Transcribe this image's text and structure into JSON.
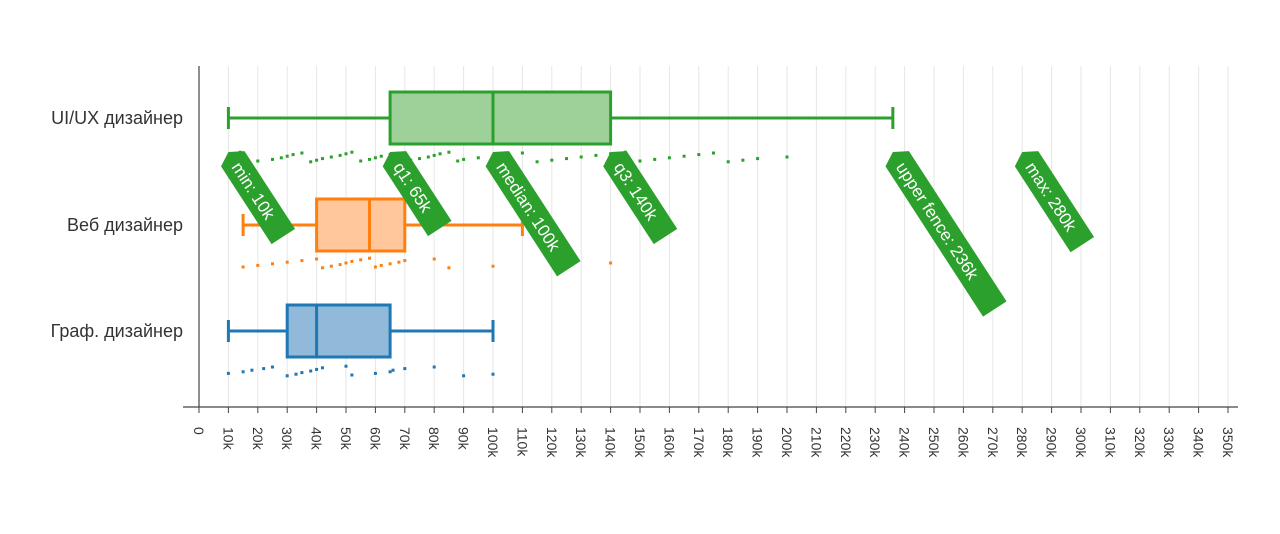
{
  "chart_data": {
    "type": "box",
    "orientation": "horizontal",
    "title": "",
    "xlabel": "",
    "ylabel": "",
    "xlim": [
      0,
      350000
    ],
    "x_ticks": [
      0,
      10000,
      20000,
      30000,
      40000,
      50000,
      60000,
      70000,
      80000,
      90000,
      100000,
      110000,
      120000,
      130000,
      140000,
      150000,
      160000,
      170000,
      180000,
      190000,
      200000,
      210000,
      220000,
      230000,
      240000,
      250000,
      260000,
      270000,
      280000,
      290000,
      300000,
      310000,
      320000,
      330000,
      340000,
      350000
    ],
    "x_tick_labels": [
      "0",
      "10k",
      "20k",
      "30k",
      "40k",
      "50k",
      "60k",
      "70k",
      "80k",
      "90k",
      "100k",
      "110k",
      "120k",
      "130k",
      "140k",
      "150k",
      "160k",
      "170k",
      "180k",
      "190k",
      "200k",
      "210k",
      "220k",
      "230k",
      "240k",
      "250k",
      "260k",
      "270k",
      "280k",
      "290k",
      "300k",
      "310k",
      "320k",
      "330k",
      "340k",
      "350k"
    ],
    "grid": "vertical",
    "series": [
      {
        "category": "UI/UX дизайнер",
        "color": "#2ca02c",
        "fill": "#9ed09a",
        "whisker_low": 10000,
        "q1": 65000,
        "median": 100000,
        "q3": 140000,
        "whisker_high": 236000,
        "points": [
          14000,
          20000,
          25000,
          28000,
          30000,
          32000,
          35000,
          38000,
          40000,
          42000,
          45000,
          48000,
          50000,
          52000,
          55000,
          58000,
          60000,
          62000,
          65000,
          68000,
          70000,
          72000,
          75000,
          78000,
          80000,
          82000,
          85000,
          88000,
          90000,
          95000,
          100000,
          105000,
          110000,
          115000,
          120000,
          125000,
          130000,
          135000,
          140000,
          145000,
          150000,
          155000,
          160000,
          165000,
          170000,
          175000,
          180000,
          185000,
          190000,
          200000
        ]
      },
      {
        "category": "Веб дизайнер",
        "color": "#ff7f0e",
        "fill": "#ffc79b",
        "whisker_low": 15000,
        "q1": 40000,
        "median": 58000,
        "q3": 70000,
        "whisker_high": 110000,
        "points": [
          15000,
          20000,
          25000,
          30000,
          35000,
          40000,
          42000,
          45000,
          48000,
          50000,
          52000,
          55000,
          58000,
          60000,
          62000,
          65000,
          68000,
          70000,
          80000,
          85000,
          100000,
          120000,
          140000
        ]
      },
      {
        "category": "Граф. дизайнер",
        "color": "#1f77b4",
        "fill": "#91b9d9",
        "whisker_low": 10000,
        "q1": 30000,
        "median": 40000,
        "q3": 65000,
        "whisker_high": 100000,
        "points": [
          10000,
          15000,
          18000,
          22000,
          25000,
          30000,
          33000,
          35000,
          38000,
          40000,
          42000,
          50000,
          52000,
          60000,
          65000,
          66000,
          70000,
          80000,
          90000,
          100000
        ]
      }
    ],
    "hover_labels": [
      {
        "text": "min: 10k",
        "value": 10000
      },
      {
        "text": "q1: 65k",
        "value": 65000
      },
      {
        "text": "median: 100k",
        "value": 100000
      },
      {
        "text": "q3: 140k",
        "value": 140000
      },
      {
        "text": "upper fence: 236k",
        "value": 236000
      },
      {
        "text": "max: 280k",
        "value": 280000
      }
    ],
    "hover_color": "#2ca02c"
  }
}
